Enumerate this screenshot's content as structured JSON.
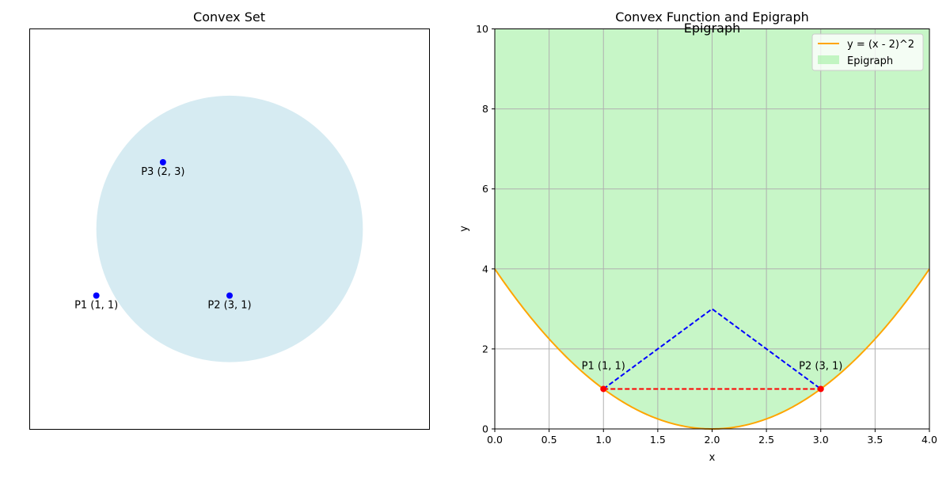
{
  "chart_data": [
    {
      "type": "scatter",
      "title": "Convex Set",
      "xlim": [
        0,
        6
      ],
      "ylim": [
        -1,
        5
      ],
      "axes_visible": false,
      "region": {
        "shape": "circle",
        "center": [
          3,
          2
        ],
        "radius": 2,
        "color": "#add8e6",
        "alpha": 0.5
      },
      "points": [
        {
          "x": 1,
          "y": 1,
          "label": "P1 (1, 1)"
        },
        {
          "x": 3,
          "y": 1,
          "label": "P2 (3, 1)"
        },
        {
          "x": 2,
          "y": 3,
          "label": "P3 (2, 3)"
        }
      ],
      "point_color": "#0000ff"
    },
    {
      "type": "line",
      "title": "Convex Function and Epigraph",
      "annotation": "Epigraph",
      "xlabel": "x",
      "ylabel": "y",
      "xlim": [
        0,
        4
      ],
      "ylim": [
        0,
        10
      ],
      "xticks": [
        "0.0",
        "0.5",
        "1.0",
        "1.5",
        "2.0",
        "2.5",
        "3.0",
        "3.5",
        "4.0"
      ],
      "yticks": [
        "0",
        "2",
        "4",
        "6",
        "8",
        "10"
      ],
      "grid": true,
      "legend_position": "top-right",
      "series": [
        {
          "name": "y = (x - 2)^2",
          "kind": "curve",
          "formula": "(x-2)^2",
          "color": "#ffa500"
        },
        {
          "name": "Epigraph",
          "kind": "fill-above",
          "color": "#90ee90",
          "alpha": 0.5
        }
      ],
      "segments": [
        {
          "points": [
            [
              1,
              1
            ],
            [
              3,
              1
            ]
          ],
          "color": "#ff0000",
          "style": "dashed"
        },
        {
          "points": [
            [
              1,
              1
            ],
            [
              2,
              3
            ],
            [
              3,
              1
            ]
          ],
          "color": "#0000ff",
          "style": "dashed"
        }
      ],
      "points": [
        {
          "x": 1,
          "y": 1,
          "label": "P1 (1, 1)"
        },
        {
          "x": 3,
          "y": 1,
          "label": "P2 (3, 1)"
        }
      ],
      "point_color": "#ff0000"
    }
  ]
}
